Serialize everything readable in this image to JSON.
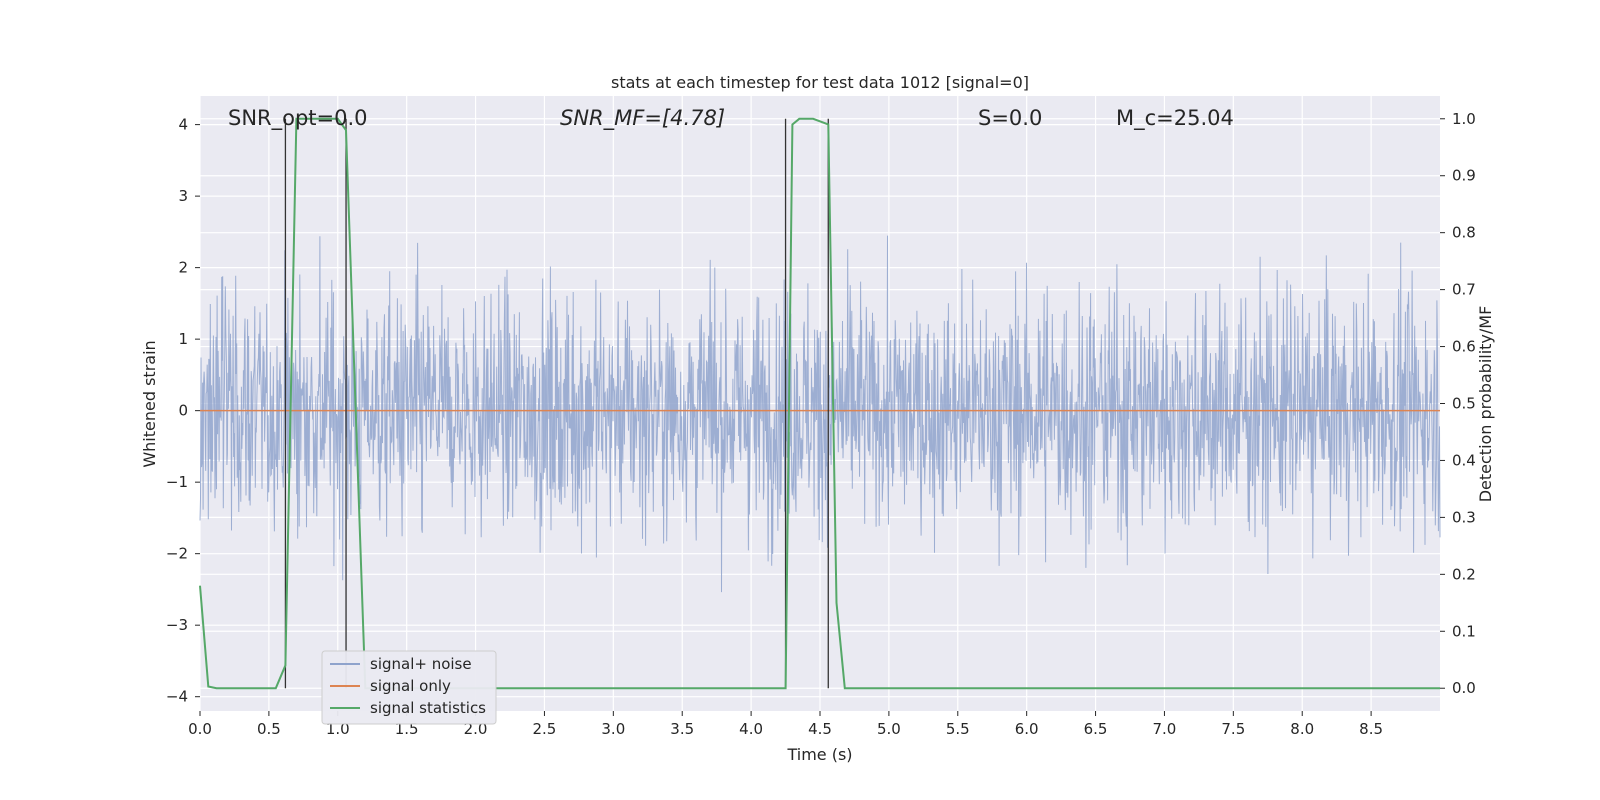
{
  "chart_data": {
    "type": "line",
    "title": "stats at each timestep for test data 1012 [signal=0]",
    "xlabel": "Time (s)",
    "ylabel": "Whitened strain",
    "y2label": "Detection probability/MF",
    "xlim": [
      0,
      9.0
    ],
    "ylim": [
      -4.2,
      4.4
    ],
    "y2lim": [
      -0.04,
      1.04
    ],
    "xticks": [
      "0.0",
      "0.5",
      "1.0",
      "1.5",
      "2.0",
      "2.5",
      "3.0",
      "3.5",
      "4.0",
      "4.5",
      "5.0",
      "5.5",
      "6.0",
      "6.5",
      "7.0",
      "7.5",
      "8.0",
      "8.5"
    ],
    "yticks": [
      "4",
      "3",
      "2",
      "1",
      "0",
      "−1",
      "−2",
      "−3",
      "−4"
    ],
    "y2ticks": [
      "1.0",
      "0.9",
      "0.8",
      "0.7",
      "0.6",
      "0.5",
      "0.4",
      "0.3",
      "0.2",
      "0.1",
      "0.0"
    ],
    "grid": true,
    "legend_position": "lower-left",
    "annotations": [
      {
        "text": "SNR_opt=0.0"
      },
      {
        "text": "SNR_MF=[4.78]"
      },
      {
        "text": "S=0.0"
      },
      {
        "text": "M_c=25.04"
      }
    ],
    "series": [
      {
        "name": "signal+ noise",
        "color": "#8fa3cc",
        "description": "whitened strain noise, roughly within ±2 with spikes to ±3.5",
        "amplitude_range": [
          -3.6,
          4.0
        ]
      },
      {
        "name": "signal only",
        "color": "#dd8452",
        "x": [
          0,
          9.0
        ],
        "y": [
          0,
          0
        ]
      },
      {
        "name": "signal statistics",
        "color": "#55a868",
        "axis": "right",
        "x": [
          0.0,
          0.06,
          0.12,
          0.2,
          0.3,
          0.55,
          0.62,
          0.7,
          0.75,
          1.0,
          1.06,
          1.2,
          1.35,
          1.5,
          2.5,
          3.5,
          4.0,
          4.25,
          4.3,
          4.35,
          4.45,
          4.56,
          4.62,
          4.68,
          5.0,
          6.0,
          7.0,
          8.0,
          9.0
        ],
        "y": [
          0.18,
          0.003,
          0.0,
          0.0,
          0.0,
          0.0,
          0.04,
          1.0,
          1.0,
          1.0,
          0.98,
          0.0,
          0.0,
          0.0,
          0.0,
          0.0,
          0.0,
          0.0,
          0.99,
          1.0,
          1.0,
          0.99,
          0.15,
          0.0,
          0.0,
          0.0,
          0.0,
          0.0,
          0.0
        ]
      }
    ],
    "vertical_markers": [
      0.62,
      1.06,
      4.25,
      4.56
    ]
  },
  "colors": {
    "plot_bg": "#eaeaf2",
    "grid": "#ffffff",
    "noise": "#8fa3cc",
    "signal": "#dd8452",
    "stats": "#55a868",
    "marker": "#333333"
  }
}
